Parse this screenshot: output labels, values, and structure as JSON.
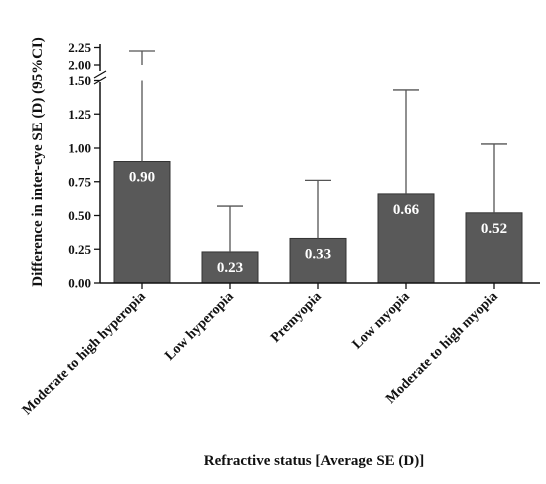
{
  "chart_data": {
    "type": "bar",
    "xlabel": "Refractive status [Average SE (D)]",
    "ylabel": "Difference in inter-eye SE (D) (95%CI)",
    "categories": [
      "Moderate to high hyperopia",
      "Low hyperopia",
      "Premyopia",
      "Low myopia",
      "Moderate to high myopia"
    ],
    "values": [
      0.9,
      0.23,
      0.33,
      0.66,
      0.52
    ],
    "value_labels": [
      "0.90",
      "0.23",
      "0.33",
      "0.66",
      "0.52"
    ],
    "ci_upper": [
      2.2,
      0.57,
      0.76,
      1.43,
      1.03
    ],
    "y_axis_break": [
      1.5,
      2.0
    ],
    "ylim": [
      0,
      2.25
    ],
    "yticks_lower": [
      "0.00",
      "0.25",
      "0.50",
      "0.75",
      "1.00",
      "1.25",
      "1.50"
    ],
    "yticks_upper": [
      "2.00",
      "2.25"
    ],
    "grid": false,
    "legend": "none",
    "bar_color": "#595959"
  }
}
